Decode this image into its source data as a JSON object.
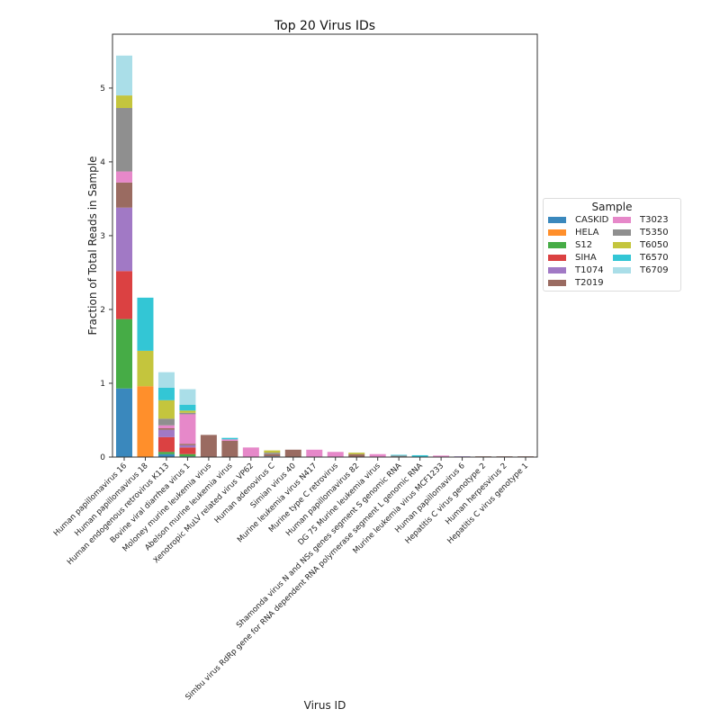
{
  "chart_data": {
    "type": "bar",
    "stacked": true,
    "title": "Top 20 Virus IDs",
    "xlabel": "Virus ID",
    "ylabel": "Fraction of Total Reads in Sample",
    "ylim": [
      0,
      5.73
    ],
    "yticks": [
      0,
      1,
      2,
      3,
      4,
      5
    ],
    "grid": false,
    "legend": {
      "title": "Sample",
      "placement": "outside-right"
    },
    "categories": [
      "Human papillomavirus 16",
      "Human papillomavirus 18",
      "Human endogenous retrovirus K113",
      "Bovine viral diarrhea virus 1",
      "Moloney murine leukemia virus",
      "Abelson murine leukemia virus",
      "Xenotropic MuLV related virus VP62",
      "Human adenovirus C",
      "Simian virus 40",
      "Murine leukemia virus N417",
      "Murine type C retrovirus",
      "Human papillomavirus 82",
      "DG 75 Murine leukemia virus",
      "Shamonda virus N and NSs genes segment S genomic RNA",
      "Simbu virus RdRp gene for RNA dependent RNA polymerase segment L genomic RNA",
      "Murine leukemia virus MCF1233",
      "Human papillomavirus 6",
      "Hepatitis C virus genotype 2",
      "Human herpesvirus 2",
      "Hepatitis C virus genotype 1"
    ],
    "series": [
      {
        "name": "CASKID",
        "color": "#1f77b4",
        "values": [
          0.93,
          0,
          0.04,
          0.01,
          0,
          0,
          0,
          0.01,
          0,
          0,
          0,
          0,
          0,
          0,
          0,
          0,
          0,
          0,
          0,
          0
        ]
      },
      {
        "name": "HELA",
        "color": "#ff7f0e",
        "values": [
          0,
          0.96,
          0,
          0,
          0,
          0,
          0,
          0,
          0,
          0,
          0,
          0,
          0,
          0,
          0,
          0,
          0,
          0,
          0,
          0
        ]
      },
      {
        "name": "S12",
        "color": "#2ca02c",
        "values": [
          0.94,
          0,
          0.03,
          0.03,
          0,
          0,
          0,
          0,
          0,
          0,
          0,
          0,
          0,
          0,
          0.005,
          0,
          0,
          0,
          0,
          0
        ]
      },
      {
        "name": "SIHA",
        "color": "#d62728",
        "values": [
          0.65,
          0,
          0.2,
          0.09,
          0,
          0,
          0,
          0,
          0,
          0,
          0,
          0,
          0,
          0,
          0,
          0,
          0,
          0,
          0,
          0
        ]
      },
      {
        "name": "T1074",
        "color": "#9467bd",
        "values": [
          0.86,
          0,
          0.1,
          0.03,
          0,
          0,
          0,
          0,
          0,
          0,
          0,
          0,
          0,
          0,
          0,
          0,
          0.01,
          0,
          0,
          0
        ]
      },
      {
        "name": "T2019",
        "color": "#8c564b",
        "values": [
          0.34,
          0,
          0.02,
          0.02,
          0.3,
          0.22,
          0,
          0.03,
          0.1,
          0,
          0,
          0.04,
          0,
          0,
          0,
          0,
          0,
          0.01,
          0.01,
          0.01
        ]
      },
      {
        "name": "T3023",
        "color": "#e377c2",
        "values": [
          0.15,
          0,
          0.04,
          0.4,
          0,
          0.02,
          0.13,
          0,
          0,
          0.1,
          0.07,
          0,
          0.04,
          0,
          0,
          0.02,
          0,
          0,
          0,
          0
        ]
      },
      {
        "name": "T5350",
        "color": "#7f7f7f",
        "values": [
          0.86,
          0,
          0.09,
          0.02,
          0,
          0,
          0,
          0.02,
          0,
          0,
          0,
          0,
          0,
          0.02,
          0,
          0,
          0,
          0,
          0,
          0
        ]
      },
      {
        "name": "T6050",
        "color": "#bcbd22",
        "values": [
          0.17,
          0.48,
          0.25,
          0.03,
          0,
          0,
          0,
          0.03,
          0,
          0,
          0,
          0.02,
          0,
          0,
          0,
          0,
          0,
          0,
          0,
          0
        ]
      },
      {
        "name": "T6570",
        "color": "#17becf",
        "values": [
          0,
          0.72,
          0.17,
          0.08,
          0,
          0.02,
          0,
          0,
          0,
          0,
          0,
          0,
          0,
          0.01,
          0.02,
          0,
          0,
          0,
          0,
          0
        ]
      },
      {
        "name": "T6709",
        "color": "#9edae5",
        "values": [
          0.54,
          0,
          0.21,
          0.21,
          0,
          0,
          0,
          0,
          0,
          0,
          0,
          0,
          0,
          0,
          0,
          0,
          0,
          0,
          0,
          0
        ]
      }
    ]
  }
}
